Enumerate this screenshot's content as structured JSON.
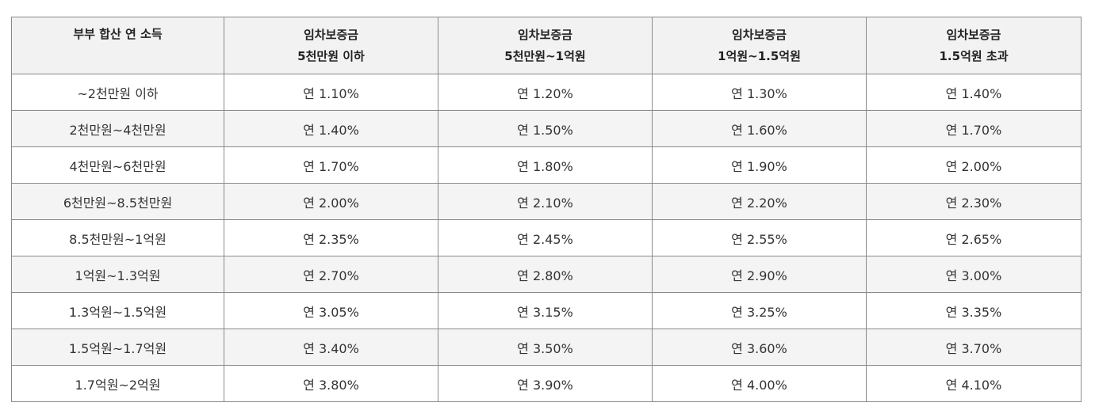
{
  "table": {
    "headers": [
      {
        "lines": [
          "부부 합산 연 소득"
        ]
      },
      {
        "lines": [
          "임차보증금",
          "5천만원 이하"
        ]
      },
      {
        "lines": [
          "임차보증금",
          "5천만원~1억원"
        ]
      },
      {
        "lines": [
          "임차보증금",
          "1억원~1.5억원"
        ]
      },
      {
        "lines": [
          "임차보증금",
          "1.5억원 초과"
        ]
      }
    ],
    "rows": [
      [
        "~2천만원 이하",
        "연 1.10%",
        "연 1.20%",
        "연 1.30%",
        "연 1.40%"
      ],
      [
        "2천만원~4천만원",
        "연 1.40%",
        "연 1.50%",
        "연 1.60%",
        "연 1.70%"
      ],
      [
        "4천만원~6천만원",
        "연 1.70%",
        "연 1.80%",
        "연 1.90%",
        "연 2.00%"
      ],
      [
        "6천만원~8.5천만원",
        "연 2.00%",
        "연 2.10%",
        "연 2.20%",
        "연 2.30%"
      ],
      [
        "8.5천만원~1억원",
        "연 2.35%",
        "연 2.45%",
        "연 2.55%",
        "연 2.65%"
      ],
      [
        "1억원~1.3억원",
        "연 2.70%",
        "연 2.80%",
        "연 2.90%",
        "연 3.00%"
      ],
      [
        "1.3억원~1.5억원",
        "연 3.05%",
        "연 3.15%",
        "연 3.25%",
        "연 3.35%"
      ],
      [
        "1.5억원~1.7억원",
        "연 3.40%",
        "연 3.50%",
        "연 3.60%",
        "연 3.70%"
      ],
      [
        "1.7억원~2억원",
        "연 3.80%",
        "연 3.90%",
        "연 4.00%",
        "연 4.10%"
      ]
    ],
    "colors": {
      "border": "#8a8a8a",
      "header_bg": "#f2f2f2",
      "alt_row_bg": "#f4f4f4",
      "text": "#222222"
    }
  }
}
